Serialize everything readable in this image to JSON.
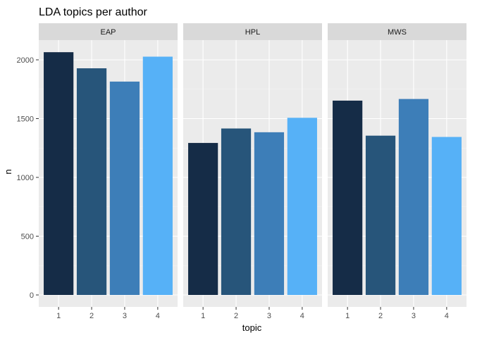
{
  "chart_data": {
    "type": "bar",
    "title": "LDA topics per author",
    "xlabel": "topic",
    "ylabel": "n",
    "ylim": [
      0,
      2150
    ],
    "yticks": [
      0,
      500,
      1000,
      1500,
      2000
    ],
    "categories": [
      "1",
      "2",
      "3",
      "4"
    ],
    "facets": [
      {
        "name": "EAP",
        "values": [
          2065,
          1928,
          1815,
          2027
        ]
      },
      {
        "name": "HPL",
        "values": [
          1293,
          1416,
          1384,
          1507
        ]
      },
      {
        "name": "MWS",
        "values": [
          1653,
          1355,
          1667,
          1344
        ]
      }
    ],
    "colors": [
      "#152C47",
      "#27557A",
      "#3D7EB8",
      "#56B1F7"
    ],
    "panel_background": "#EBEBEB",
    "strip_background": "#D9D9D9",
    "grid": true,
    "legend": "none"
  }
}
